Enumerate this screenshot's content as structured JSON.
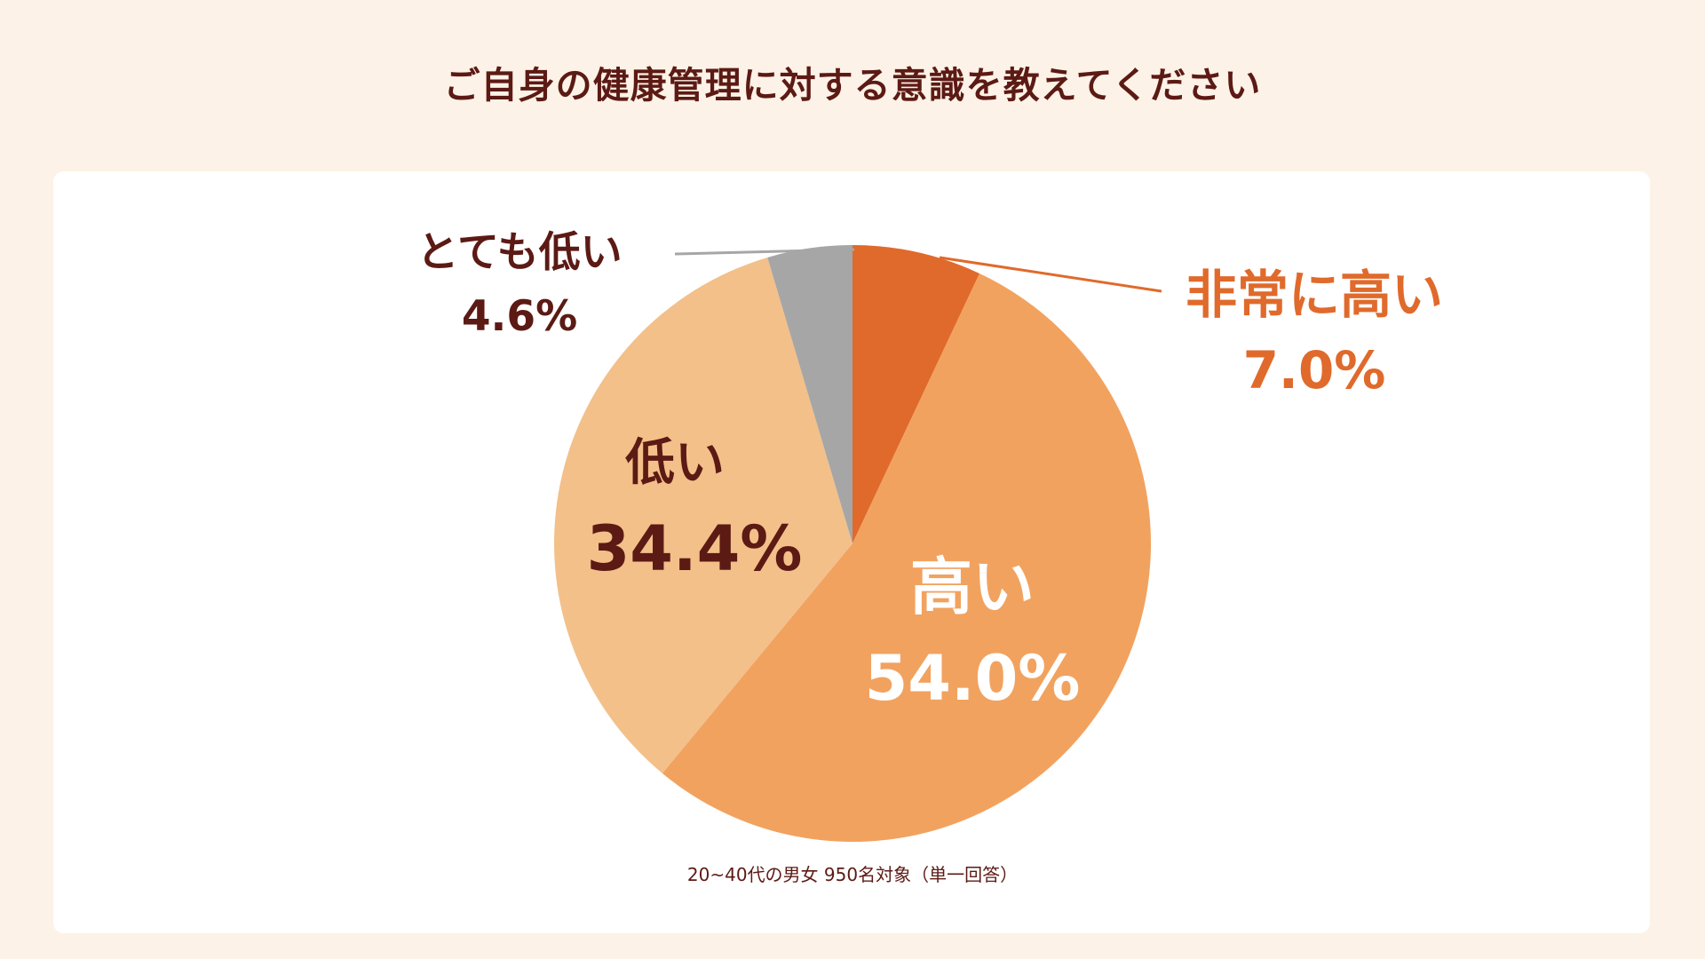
{
  "title": "ご自身の健康管理に対する意識を教えてください",
  "note": "20~40代の男女 950名対象（単一回答）",
  "colors": {
    "background": "#fdf2e7",
    "card": "#ffffff",
    "dark_text": "#5c1a14",
    "very_high": "#e06a2b",
    "high": "#f2a25f",
    "low": "#f3c08a",
    "very_low": "#a6a6a6"
  },
  "chart_data": {
    "type": "pie",
    "title": "ご自身の健康管理に対する意識を教えてください",
    "start": "12 o'clock, clockwise",
    "slices": [
      {
        "key": "very_high",
        "label": "非常に高い",
        "value": 7.0,
        "value_label": "7.0%",
        "color": "#e06a2b",
        "label_color": "#e06a2b",
        "callout": true
      },
      {
        "key": "high",
        "label": "高い",
        "value": 54.0,
        "value_label": "54.0%",
        "color": "#f2a25f",
        "label_color": "#ffffff",
        "callout": false
      },
      {
        "key": "low",
        "label": "低い",
        "value": 34.4,
        "value_label": "34.4%",
        "color": "#f3c08a",
        "label_color": "#5c1a14",
        "callout": false
      },
      {
        "key": "very_low",
        "label": "とても低い",
        "value": 4.6,
        "value_label": "4.6%",
        "color": "#a6a6a6",
        "label_color": "#5c1a14",
        "callout": true
      }
    ]
  }
}
